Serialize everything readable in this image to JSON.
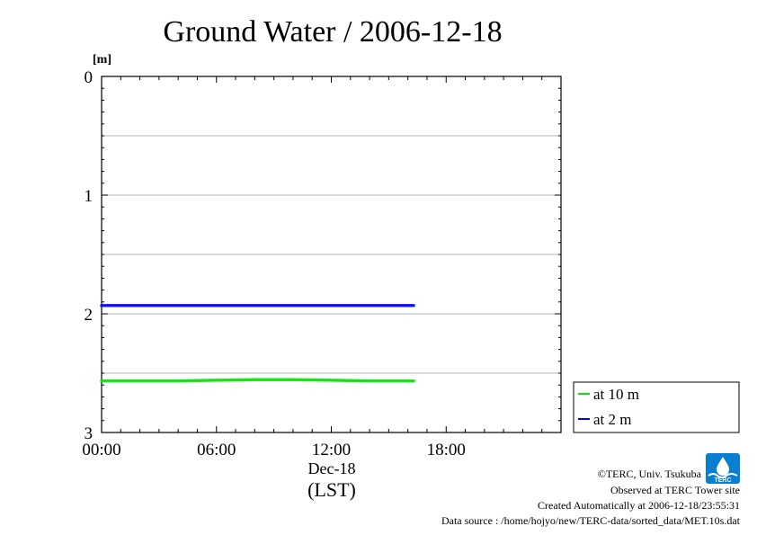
{
  "chart_data": {
    "type": "line",
    "title": "Ground Water / 2006-12-18",
    "ylabel": "[m]",
    "xlabel": "(LST)",
    "date_label": "Dec-18",
    "x_unit": "hours (LST)",
    "xlim": [
      0,
      24
    ],
    "ylim": [
      0,
      3
    ],
    "y_inverted": true,
    "yticks": [
      0,
      1,
      2,
      3
    ],
    "y_tick_labels": [
      "0",
      "1",
      "2",
      "3"
    ],
    "x_ticks": [
      0,
      6,
      12,
      18
    ],
    "x_tick_labels": [
      "00:00",
      "06:00",
      "12:00",
      "18:00"
    ],
    "grid": {
      "horizontal": true,
      "y_step": 0.5,
      "vertical": false
    },
    "legend_position": "right-bottom",
    "series": [
      {
        "name": "at 10 m",
        "color": "#00e600",
        "x": [
          0,
          2,
          4,
          6,
          8,
          10,
          12,
          14,
          16.3
        ],
        "values": [
          2.565,
          2.565,
          2.565,
          2.56,
          2.555,
          2.555,
          2.56,
          2.565,
          2.565
        ]
      },
      {
        "name": "at 2 m",
        "color": "#0000ff",
        "x": [
          0,
          2,
          4,
          6,
          8,
          10,
          12,
          14,
          16.3
        ],
        "values": [
          1.93,
          1.93,
          1.93,
          1.93,
          1.93,
          1.93,
          1.93,
          1.93,
          1.93
        ]
      }
    ]
  },
  "credits": {
    "copyright": "©TERC, Univ. Tsukuba",
    "observed": "Observed at TERC Tower site",
    "created": "Created Automatically at 2006-12-18/23:55:31",
    "source": "Data source : /home/hojyo/new/TERC-data/sorted_data/MET.10s.dat"
  },
  "logo": {
    "name": "terc-logo",
    "text": "TERC",
    "color": "#0a7fd0"
  }
}
